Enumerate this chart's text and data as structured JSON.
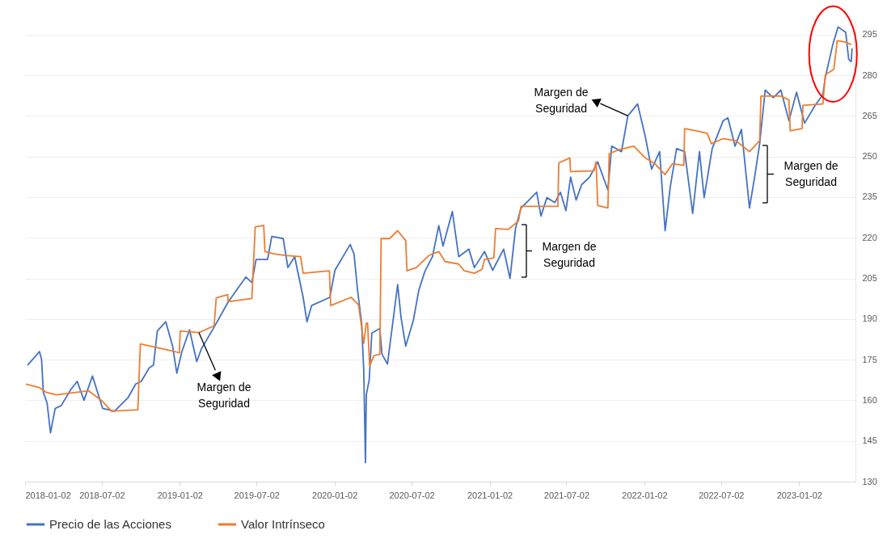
{
  "chart_data": {
    "type": "line",
    "xlim": [
      "2018-01-02",
      "2023-05-15"
    ],
    "ylim": [
      130,
      300
    ],
    "xticks": [
      "2018-01-02",
      "2018-07-02",
      "2019-01-02",
      "2019-07-02",
      "2020-01-02",
      "2020-07-02",
      "2021-01-02",
      "2021-07-02",
      "2022-01-02",
      "2022-07-02",
      "2023-01-02"
    ],
    "yticks": [
      130,
      145,
      160,
      175,
      190,
      205,
      220,
      235,
      250,
      265,
      280,
      295
    ],
    "grid": "y",
    "legend": "bottom",
    "line_style": "solid",
    "annotations": [
      {
        "text": "Margen de\nSeguridad",
        "x": "2019-02-16",
        "y": 185
      },
      {
        "text": "Margen de\nSeguridad",
        "x": "2021-11-24",
        "y": 265
      },
      "Margen de\nSeguridad",
      "Margen de\nSeguridad"
    ],
    "series": [
      {
        "name": "Precio de las Acciones",
        "color": "#4472c4",
        "x": [
          "2018-01-08",
          "2018-02-05",
          "2018-02-10",
          "2018-02-14",
          "2018-02-23",
          "2018-03-03",
          "2018-03-14",
          "2018-03-28",
          "2018-04-20",
          "2018-05-05",
          "2018-05-21",
          "2018-06-10",
          "2018-07-04",
          "2018-08-01",
          "2018-09-02",
          "2018-09-20",
          "2018-10-03",
          "2018-10-22",
          "2018-11-01",
          "2018-11-10",
          "2018-11-30",
          "2018-12-16",
          "2018-12-26",
          "2019-01-07",
          "2019-01-25",
          "2019-02-11",
          "2019-02-22",
          "2019-03-24",
          "2019-04-25",
          "2019-05-13",
          "2019-06-07",
          "2019-06-21",
          "2019-07-01",
          "2019-07-28",
          "2019-08-07",
          "2019-09-03",
          "2019-09-14",
          "2019-09-30",
          "2019-10-20",
          "2019-10-29",
          "2019-11-09",
          "2019-12-22",
          "2020-01-03",
          "2020-01-29",
          "2020-02-08",
          "2020-02-17",
          "2020-02-26",
          "2020-03-06",
          "2020-03-11",
          "2020-03-15",
          "2020-03-17",
          "2020-03-24",
          "2020-03-30",
          "2020-04-18",
          "2020-04-23",
          "2020-05-06",
          "2020-05-30",
          "2020-06-07",
          "2020-06-18",
          "2020-07-06",
          "2020-07-19",
          "2020-08-02",
          "2020-08-20",
          "2020-09-04",
          "2020-09-14",
          "2020-10-06",
          "2020-10-21",
          "2020-11-14",
          "2020-11-27",
          "2020-12-21",
          "2021-01-09",
          "2021-02-04",
          "2021-02-19",
          "2021-03-04",
          "2021-03-17",
          "2021-03-30",
          "2021-04-23",
          "2021-05-03",
          "2021-05-17",
          "2021-06-05",
          "2021-06-18",
          "2021-07-01",
          "2021-07-12",
          "2021-07-25",
          "2021-08-07",
          "2021-08-26",
          "2021-09-14",
          "2021-10-08",
          "2021-10-17",
          "2021-11-09",
          "2021-11-24",
          "2021-12-17",
          "2022-01-04",
          "2022-01-19",
          "2022-02-07",
          "2022-02-20",
          "2022-03-04",
          "2022-03-19",
          "2022-04-07",
          "2022-04-26",
          "2022-05-12",
          "2022-05-23",
          "2022-06-11",
          "2022-07-07",
          "2022-07-18",
          "2022-08-04",
          "2022-08-19",
          "2022-09-07",
          "2022-09-20",
          "2022-10-01",
          "2022-10-14",
          "2022-11-02",
          "2022-11-20",
          "2022-12-09",
          "2022-12-27",
          "2023-01-15",
          "2023-02-09",
          "2023-02-27",
          "2023-03-05",
          "2023-03-23",
          "2023-04-04",
          "2023-04-22",
          "2023-04-29",
          "2023-05-05",
          "2023-05-07"
        ],
        "values": [
          173,
          178,
          175,
          163,
          159,
          148,
          157,
          158,
          164,
          167,
          160,
          169,
          157,
          156,
          161,
          166,
          167,
          172,
          173,
          185.6,
          189,
          180,
          170,
          178,
          186,
          174.3,
          179,
          187,
          196,
          200,
          205.5,
          203.5,
          212,
          212,
          220.5,
          219.7,
          209,
          213,
          198,
          189,
          195,
          198,
          208,
          214.9,
          217.5,
          214,
          199.8,
          188.5,
          171,
          137,
          162,
          167.7,
          184.8,
          186.5,
          177,
          173.4,
          202.7,
          190.5,
          180,
          189.5,
          200.7,
          207.5,
          213,
          224.5,
          216.9,
          229.7,
          213,
          215.8,
          209,
          214.9,
          208,
          215.8,
          205,
          223.4,
          231,
          233,
          236.8,
          228,
          234.8,
          233,
          236.8,
          230,
          242.4,
          233.9,
          239.6,
          242.4,
          248,
          237.6,
          253.8,
          251.8,
          265,
          269.4,
          257.5,
          245.3,
          251.8,
          222.6,
          238.7,
          252.9,
          251.8,
          229,
          251.8,
          234.8,
          252.9,
          263.2,
          264.3,
          253.8,
          260,
          231,
          243.3,
          254.7,
          274.5,
          271.7,
          274.5,
          263.2,
          273.7,
          262.3,
          268.9,
          272.8,
          279.3,
          291.6,
          297.8,
          295.8,
          285.9,
          285,
          289.9
        ]
      },
      {
        "name": "Valor Intrínseco",
        "color": "#ed7d31",
        "x": [
          "2018-01-04",
          "2018-02-05",
          "2018-02-20",
          "2018-03-17",
          "2018-06-01",
          "2018-07-01",
          "2018-07-25",
          "2018-09-25",
          "2018-10-01",
          "2018-10-27",
          "2018-12-22",
          "2019-01-01",
          "2019-01-03",
          "2019-02-16",
          "2019-03-24",
          "2019-03-29",
          "2019-04-25",
          "2019-04-26",
          "2019-06-21",
          "2019-06-29",
          "2019-07-19",
          "2019-07-22",
          "2019-08-14",
          "2019-09-08",
          "2019-10-14",
          "2019-10-20",
          "2019-12-21",
          "2019-12-24",
          "2020-02-10",
          "2020-02-22",
          "2020-02-28",
          "2020-03-11",
          "2020-03-17",
          "2020-03-20",
          "2020-03-25",
          "2020-04-04",
          "2020-04-18",
          "2020-04-21",
          "2020-05-11",
          "2020-05-30",
          "2020-06-18",
          "2020-06-21",
          "2020-07-13",
          "2020-08-12",
          "2020-09-04",
          "2020-09-19",
          "2020-10-21",
          "2020-11-03",
          "2020-11-27",
          "2020-12-15",
          "2020-12-21",
          "2021-01-12",
          "2021-01-16",
          "2021-02-15",
          "2021-03-11",
          "2021-03-17",
          "2021-06-12",
          "2021-06-14",
          "2021-07-10",
          "2021-07-12",
          "2021-09-05",
          "2021-09-10",
          "2021-09-14",
          "2021-10-08",
          "2021-10-11",
          "2021-11-01",
          "2021-12-08",
          "2022-01-04",
          "2022-01-27",
          "2022-02-20",
          "2022-03-09",
          "2022-04-05",
          "2022-04-07",
          "2022-05-04",
          "2022-05-30",
          "2022-06-09",
          "2022-07-07",
          "2022-08-06",
          "2022-09-07",
          "2022-10-01",
          "2022-10-04",
          "2022-11-20",
          "2022-12-09",
          "2022-12-12",
          "2023-01-09",
          "2023-01-11",
          "2023-02-27",
          "2023-03-05",
          "2023-03-25",
          "2023-04-02",
          "2023-04-22",
          "2023-05-05"
        ],
        "values": [
          166,
          164.7,
          163,
          162,
          163.5,
          160,
          156,
          156.5,
          180.8,
          179.9,
          178,
          177.5,
          185.6,
          185,
          187.5,
          197.8,
          199,
          196.4,
          197.6,
          224,
          224.6,
          214.9,
          214,
          213.5,
          213,
          206.9,
          207.8,
          195,
          198,
          196.2,
          195,
          181,
          188.5,
          188.5,
          172.7,
          176.5,
          177,
          219.7,
          219.7,
          222.6,
          218.9,
          207.8,
          209,
          213.5,
          214.9,
          211.2,
          210.3,
          207.8,
          206.9,
          208.3,
          212,
          212.6,
          223.4,
          223.1,
          226.2,
          231.6,
          231.6,
          247.6,
          249.5,
          244.4,
          244.7,
          248,
          231.9,
          231,
          251,
          252.4,
          253.8,
          249.5,
          247.3,
          243.3,
          247.3,
          246.7,
          260.3,
          259.5,
          258.6,
          254.7,
          256.6,
          255.8,
          251.8,
          255.8,
          272.3,
          272.3,
          270.9,
          259.5,
          260.3,
          268.9,
          269.4,
          280.2,
          282.2,
          292.7,
          292.2,
          291.3
        ]
      }
    ]
  }
}
